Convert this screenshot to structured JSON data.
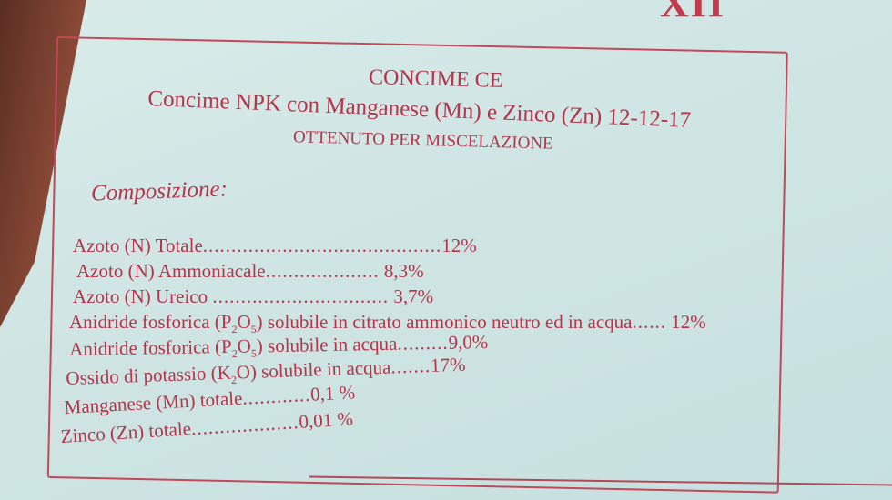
{
  "label": {
    "top_partial_text": "XII",
    "title": "CONCIME CE",
    "subtitle": "Concime NPK con Manganese (Mn) e Zinco (Zn) 12-12-17",
    "method": "OTTENUTO PER MISCELAZIONE",
    "composition_heading": "Composizione:",
    "items": [
      {
        "name": "Azoto (N) Totale",
        "dots": "..........................................",
        "value": "12%"
      },
      {
        "name": "Azoto (N) Ammoniacale",
        "dots": "....................",
        "value": "8,3%"
      },
      {
        "name": "Azoto (N) Ureico",
        "dots": "...............................",
        "value": "3,7%"
      },
      {
        "name_pre": "Anidride fosforica (P",
        "sub1": "2",
        "mid": "O",
        "sub2": "5",
        "name_post": ") solubile in citrato ammonico neutro ed in acqua",
        "dots": "......",
        "value": "12%"
      },
      {
        "name_pre": "Anidride fosforica (P",
        "sub1": "2",
        "mid": "O",
        "sub2": "5",
        "name_post": ") solubile in acqua",
        "dots": ".........",
        "value": "9,0%"
      },
      {
        "name_pre": "Ossido di potassio (K",
        "sub1": "2",
        "name_post": "O) solubile in acqua",
        "dots": ".......",
        "value": "17%"
      },
      {
        "name": "Manganese (Mn) totale",
        "dots": "............",
        "value": "0,1 %"
      },
      {
        "name": "Zinco (Zn) totale",
        "dots": "...................",
        "value": "0,01 %"
      }
    ]
  },
  "colors": {
    "ink": "#b5344a",
    "background": "#cfe5e3"
  }
}
